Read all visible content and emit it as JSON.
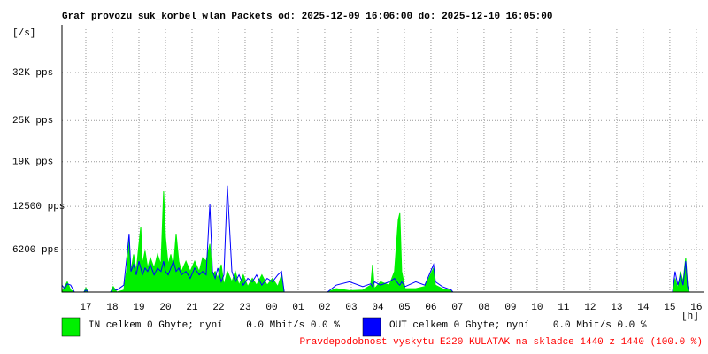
{
  "chart_data": {
    "type": "line",
    "title": "Graf provozu suk_korbel_wlan Packets od: 2025-12-09 16:06:00 do: 2025-12-10 16:05:00",
    "y_unit_label": "[/s]",
    "x_unit_label": "[h]",
    "footer": "Pravdepodobnost vyskytu E220 KULATAK na skladce 1440 z 1440 (100.0 %)",
    "grid": true,
    "xlim": [
      16.1,
      40.27
    ],
    "ylim": [
      0,
      38700
    ],
    "xticks": [
      {
        "value": 17,
        "label": "17"
      },
      {
        "value": 18,
        "label": "18"
      },
      {
        "value": 19,
        "label": "19"
      },
      {
        "value": 20,
        "label": "20"
      },
      {
        "value": 21,
        "label": "21"
      },
      {
        "value": 22,
        "label": "22"
      },
      {
        "value": 23,
        "label": "23"
      },
      {
        "value": 24,
        "label": "00"
      },
      {
        "value": 25,
        "label": "01"
      },
      {
        "value": 26,
        "label": "02"
      },
      {
        "value": 27,
        "label": "03"
      },
      {
        "value": 28,
        "label": "04"
      },
      {
        "value": 29,
        "label": "05"
      },
      {
        "value": 30,
        "label": "06"
      },
      {
        "value": 31,
        "label": "07"
      },
      {
        "value": 32,
        "label": "08"
      },
      {
        "value": 33,
        "label": "09"
      },
      {
        "value": 34,
        "label": "10"
      },
      {
        "value": 35,
        "label": "11"
      },
      {
        "value": 36,
        "label": "12"
      },
      {
        "value": 37,
        "label": "13"
      },
      {
        "value": 38,
        "label": "14"
      },
      {
        "value": 39,
        "label": "15"
      },
      {
        "value": 40,
        "label": "16"
      }
    ],
    "yticks": [
      {
        "value": 6200,
        "label": "6200 pps"
      },
      {
        "value": 12500,
        "label": "12500 pps"
      },
      {
        "value": 19000,
        "label": "19K pps"
      },
      {
        "value": 25000,
        "label": "25K pps"
      },
      {
        "value": 32000,
        "label": "32K pps"
      }
    ],
    "x": [
      16.1,
      16.2,
      16.3,
      16.43,
      16.57,
      16.93,
      17.0,
      17.1,
      17.93,
      18.03,
      18.17,
      18.43,
      18.57,
      18.63,
      18.7,
      18.8,
      18.9,
      19.0,
      19.07,
      19.13,
      19.23,
      19.33,
      19.43,
      19.57,
      19.7,
      19.83,
      19.93,
      20.0,
      20.1,
      20.2,
      20.3,
      20.4,
      20.5,
      20.6,
      20.77,
      20.93,
      21.1,
      21.27,
      21.4,
      21.53,
      21.67,
      21.77,
      21.87,
      21.97,
      22.1,
      22.2,
      22.33,
      22.5,
      22.63,
      22.77,
      22.93,
      23.1,
      23.27,
      23.43,
      23.63,
      23.83,
      24.03,
      24.23,
      24.37,
      24.47,
      26.1,
      26.43,
      26.93,
      27.43,
      27.73,
      27.8,
      27.87,
      28.1,
      28.43,
      28.63,
      28.77,
      28.83,
      28.9,
      29.03,
      29.43,
      29.77,
      30.1,
      30.17,
      30.43,
      30.77,
      30.83,
      39.1,
      39.2,
      39.3,
      39.4,
      39.5,
      39.6,
      39.67,
      39.73
    ],
    "series": [
      {
        "name": "IN celkem 0 Gbyte; nyní    0.0 Mbit/s 0.0 %",
        "color": "#00f000",
        "area": true,
        "values": [
          0,
          800,
          1500,
          300,
          0,
          0,
          600,
          0,
          0,
          800,
          0,
          300,
          4000,
          7500,
          3000,
          5500,
          3000,
          7000,
          9500,
          4000,
          6000,
          3500,
          5000,
          3500,
          5500,
          4000,
          14700,
          8000,
          4000,
          5500,
          3500,
          8500,
          4500,
          3000,
          4500,
          3000,
          4500,
          3000,
          5000,
          4500,
          7000,
          2500,
          3000,
          2000,
          4000,
          1000,
          3000,
          1500,
          3000,
          1000,
          2500,
          800,
          2000,
          1000,
          2500,
          1000,
          2000,
          800,
          2500,
          0,
          0,
          500,
          200,
          300,
          1000,
          4000,
          500,
          1500,
          1000,
          3000,
          10500,
          11500,
          3000,
          500,
          500,
          800,
          3500,
          1000,
          500,
          200,
          0,
          0,
          2000,
          500,
          3000,
          1500,
          5000,
          1000,
          0
        ]
      },
      {
        "name": "OUT celkem 0 Gbyte; nyní    0.0 Mbit/s 0.0 %",
        "color": "#0000ff",
        "area": false,
        "values": [
          1000,
          500,
          1200,
          1000,
          0,
          0,
          300,
          0,
          0,
          500,
          300,
          1000,
          6000,
          8500,
          3000,
          4000,
          2500,
          4500,
          3500,
          2500,
          3500,
          3000,
          4000,
          2500,
          3500,
          3000,
          4500,
          3000,
          2500,
          3500,
          4500,
          3000,
          3500,
          2500,
          3000,
          2000,
          3500,
          2500,
          3000,
          2500,
          12800,
          3000,
          2000,
          3500,
          1500,
          2500,
          15500,
          3000,
          1500,
          2500,
          1000,
          2000,
          1500,
          2500,
          1000,
          2000,
          1500,
          2500,
          3000,
          0,
          0,
          1000,
          1500,
          800,
          1200,
          800,
          1500,
          1000,
          1500,
          2000,
          1200,
          1000,
          1500,
          800,
          1500,
          1000,
          4000,
          1500,
          800,
          300,
          0,
          0,
          3000,
          1000,
          2500,
          1000,
          4500,
          800,
          0
        ]
      }
    ]
  }
}
